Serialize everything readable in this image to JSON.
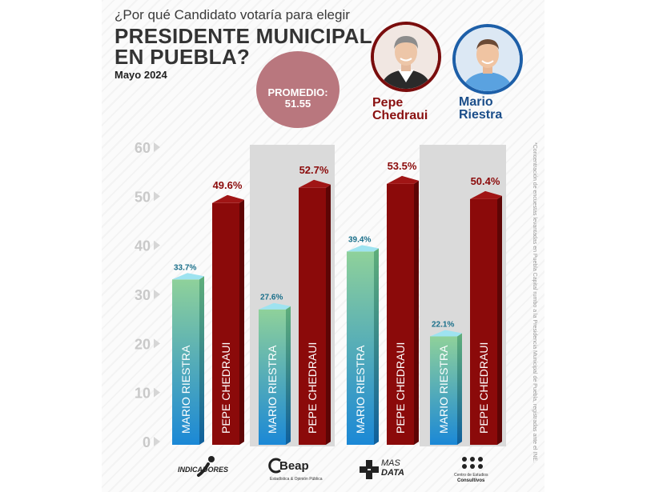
{
  "header": {
    "question": "¿Por qué Candidato votaría para elegir",
    "title_line1": "PRESIDENTE MUNICIPAL",
    "title_line2": "EN PUEBLA?",
    "date": "Mayo 2024"
  },
  "average": {
    "label": "PROMEDIO:",
    "value": "51.55"
  },
  "candidates": [
    {
      "first": "Pepe",
      "last": "Chedraui",
      "color": "#8a1010",
      "ring": "#7a0d0d"
    },
    {
      "first": "Mario",
      "last": "Riestra",
      "color": "#1b4e8a",
      "ring": "#1d5fa8"
    }
  ],
  "side_note": "*Concentración de encuestas levantadas en Puebla Capital rumbo a la Presidencia Municipal de Puebla, registradas ante el INE.",
  "colors": {
    "riestra_top": "#8fd19a",
    "riestra_bottom": "#1b88d6",
    "chedraui": "#8b0a0a",
    "chedraui_side": "#5d0505",
    "band": "#dadada"
  },
  "chart_data": {
    "type": "bar",
    "categories": [
      "INDICADORES",
      "CEAP",
      "MAS DATA",
      "Centro de Estudios Consultivos"
    ],
    "ylim": [
      0,
      60
    ],
    "yticks": [
      "0",
      "10",
      "20",
      "30",
      "40",
      "50",
      "60"
    ],
    "series": [
      {
        "name": "MARIO RIESTRA",
        "values": [
          33.7,
          27.6,
          39.4,
          22.1
        ],
        "labels": [
          "33.7%",
          "27.6%",
          "39.4%",
          "22.1%"
        ]
      },
      {
        "name": "PEPE CHEDRAUI",
        "values": [
          49.6,
          52.7,
          53.5,
          50.4
        ],
        "labels": [
          "49.6%",
          "52.7%",
          "53.5%",
          "50.4%"
        ]
      }
    ]
  },
  "logos": [
    {
      "text": "INDICADORES",
      "icon": "indicadores-person-icon"
    },
    {
      "text": "Beap",
      "sub": "Estadística & Opinión Pública",
      "icon": "ceap-c-icon"
    },
    {
      "text1": "MAS",
      "text2": "DATA",
      "icon": "plus-cross-icon"
    },
    {
      "text1": "Centro de Estudios",
      "text2": "Consultivos",
      "icon": "dots-grid-icon"
    }
  ]
}
